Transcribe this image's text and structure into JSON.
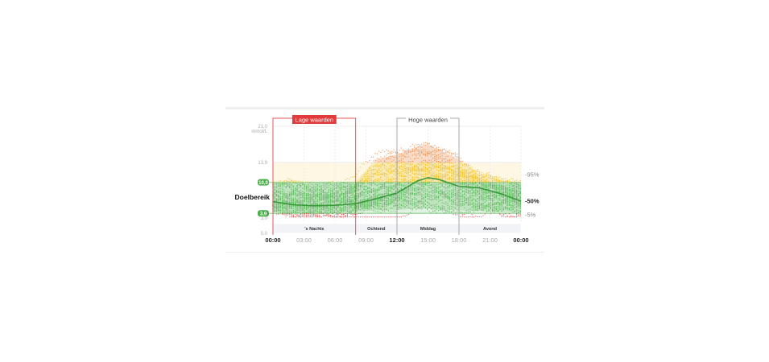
{
  "chart_data": {
    "type": "line",
    "unit_label": "mmol/L",
    "ylim": [
      0,
      21
    ],
    "y_ticks": [
      {
        "v": 21.0,
        "label": "21,0"
      },
      {
        "v": 13.9,
        "label": "13,9"
      },
      {
        "v": 3.0,
        "label": "3,0"
      },
      {
        "v": 0.0,
        "label": "0,0"
      }
    ],
    "target_range": {
      "label": "Doelbereik",
      "low": 3.9,
      "high": 10.0,
      "low_label": "3,9",
      "high_label": "10,0"
    },
    "x_ticks": [
      {
        "h": 0,
        "label": "00:00",
        "bold": true
      },
      {
        "h": 3,
        "label": "03:00",
        "bold": false
      },
      {
        "h": 6,
        "label": "06:00",
        "bold": false
      },
      {
        "h": 9,
        "label": "09:00",
        "bold": false
      },
      {
        "h": 12,
        "label": "12:00",
        "bold": true
      },
      {
        "h": 15,
        "label": "15:00",
        "bold": false
      },
      {
        "h": 18,
        "label": "18:00",
        "bold": false
      },
      {
        "h": 21,
        "label": "21:00",
        "bold": false
      },
      {
        "h": 24,
        "label": "00:00",
        "bold": true
      }
    ],
    "periods": [
      {
        "label": "'s Nachts",
        "from": 0,
        "to": 8
      },
      {
        "label": "Ochtend",
        "from": 8,
        "to": 12
      },
      {
        "label": "Middag",
        "from": 12,
        "to": 18
      },
      {
        "label": "Avond",
        "from": 18,
        "to": 24
      }
    ],
    "highlights": [
      {
        "label": "Lage waarden",
        "from": 0,
        "to": 8,
        "color": "#e03a3a"
      },
      {
        "label": "Hoge waarden",
        "from": 12,
        "to": 18,
        "color": "#999999"
      }
    ],
    "percentile_labels": [
      "95%",
      "50%",
      "5%"
    ],
    "hours": [
      0,
      2,
      4,
      6,
      8,
      10,
      12,
      14,
      15,
      16,
      18,
      20,
      22,
      24
    ],
    "p50": [
      6.2,
      5.6,
      5.4,
      5.5,
      5.8,
      6.8,
      7.9,
      10.3,
      10.9,
      10.6,
      9.2,
      8.9,
      7.8,
      6.3
    ],
    "p95": [
      10.0,
      10.4,
      10.0,
      9.8,
      10.2,
      14.5,
      15.5,
      17.0,
      17.4,
      16.5,
      14.5,
      11.5,
      10.5,
      10.0
    ],
    "p5": [
      4.2,
      4.0,
      3.9,
      4.0,
      4.2,
      4.5,
      4.6,
      4.8,
      4.9,
      4.7,
      4.5,
      4.4,
      4.2,
      4.2
    ],
    "colors": {
      "low": "#d9534f",
      "target": "#5cb85c",
      "high": "#f0c020",
      "very_high": "#ec8c4a",
      "median": "#3a9a3a"
    }
  }
}
